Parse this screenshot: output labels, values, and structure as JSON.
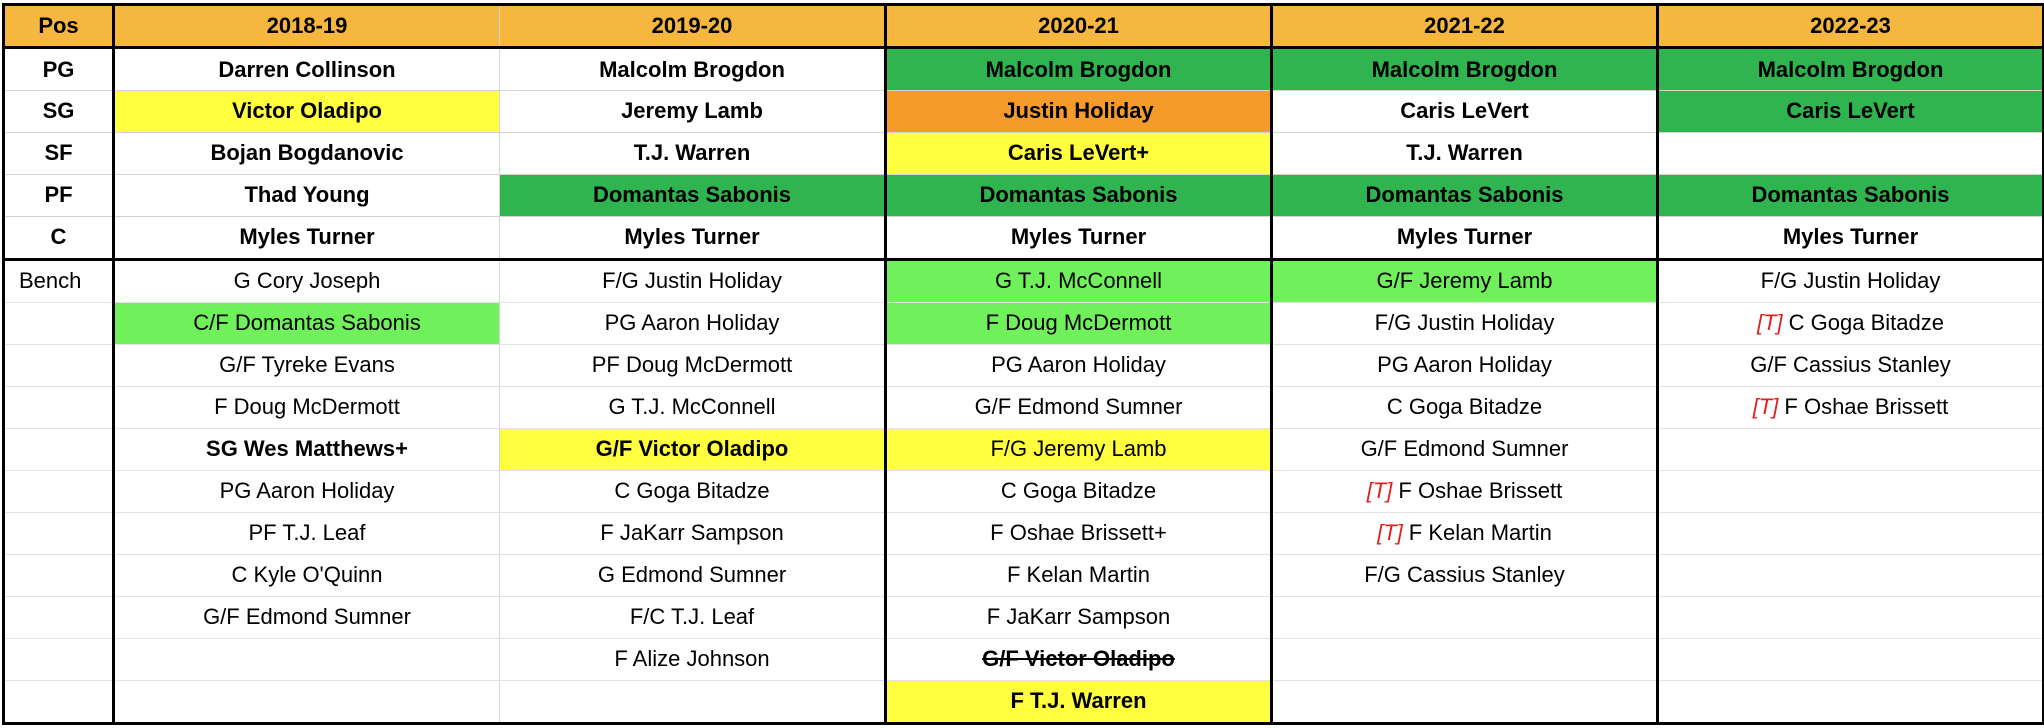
{
  "header": {
    "pos": "Pos",
    "seasons": [
      "2018-19",
      "2019-20",
      "2020-21",
      "2021-22",
      "2022-23"
    ]
  },
  "bench_label": "Bench",
  "starters": [
    {
      "pos": "PG",
      "cells": [
        {
          "text": "Darren Collinson"
        },
        {
          "text": "Malcolm Brogdon"
        },
        {
          "text": "Malcolm Brogdon",
          "color": "green"
        },
        {
          "text": "Malcolm Brogdon",
          "color": "green"
        },
        {
          "text": "Malcolm Brogdon",
          "color": "green"
        }
      ]
    },
    {
      "pos": "SG",
      "cells": [
        {
          "text": "Victor Oladipo",
          "color": "yellow"
        },
        {
          "text": "Jeremy Lamb"
        },
        {
          "text": "Justin Holiday",
          "color": "orange"
        },
        {
          "text": "Caris LeVert"
        },
        {
          "text": "Caris LeVert",
          "color": "green"
        }
      ]
    },
    {
      "pos": "SF",
      "cells": [
        {
          "text": "Bojan Bogdanovic"
        },
        {
          "text": "T.J. Warren"
        },
        {
          "text": "Caris LeVert+",
          "color": "yellow"
        },
        {
          "text": "T.J. Warren"
        },
        {
          "text": ""
        }
      ]
    },
    {
      "pos": "PF",
      "cells": [
        {
          "text": "Thad Young"
        },
        {
          "text": "Domantas Sabonis",
          "color": "green"
        },
        {
          "text": "Domantas Sabonis",
          "color": "green"
        },
        {
          "text": "Domantas Sabonis",
          "color": "green"
        },
        {
          "text": "Domantas Sabonis",
          "color": "green"
        }
      ]
    },
    {
      "pos": "C",
      "cells": [
        {
          "text": "Myles Turner"
        },
        {
          "text": "Myles Turner"
        },
        {
          "text": "Myles Turner"
        },
        {
          "text": "Myles Turner"
        },
        {
          "text": "Myles Turner"
        }
      ]
    }
  ],
  "bench": [
    [
      {
        "text": "G Cory Joseph"
      },
      {
        "text": "F/G Justin Holiday"
      },
      {
        "text": "G T.J. McConnell",
        "color": "lightgreen"
      },
      {
        "text": "G/F Jeremy Lamb",
        "color": "lightgreen"
      },
      {
        "text": "F/G Justin Holiday"
      }
    ],
    [
      {
        "text": "C/F Domantas Sabonis",
        "color": "lightgreen"
      },
      {
        "text": "PG Aaron Holiday"
      },
      {
        "text": "F Doug McDermott",
        "color": "lightgreen"
      },
      {
        "text": "F/G Justin Holiday"
      },
      {
        "text": "C Goga Bitadze",
        "tag": "[T]"
      }
    ],
    [
      {
        "text": "G/F Tyreke Evans"
      },
      {
        "text": "PF Doug McDermott"
      },
      {
        "text": "PG Aaron Holiday"
      },
      {
        "text": "PG Aaron Holiday"
      },
      {
        "text": "G/F Cassius Stanley"
      }
    ],
    [
      {
        "text": "F Doug McDermott"
      },
      {
        "text": "G T.J. McConnell"
      },
      {
        "text": "G/F Edmond Sumner"
      },
      {
        "text": "C Goga Bitadze"
      },
      {
        "text": "F Oshae Brissett",
        "tag": "[T]"
      }
    ],
    [
      {
        "text": "SG Wes Matthews+",
        "bold": true
      },
      {
        "text": "G/F Victor Oladipo",
        "color": "yellow",
        "bold": true
      },
      {
        "text": "F/G Jeremy Lamb",
        "color": "yellow"
      },
      {
        "text": "G/F Edmond Sumner"
      },
      {
        "text": ""
      }
    ],
    [
      {
        "text": "PG Aaron Holiday"
      },
      {
        "text": "C Goga Bitadze"
      },
      {
        "text": "C Goga Bitadze"
      },
      {
        "text": "F Oshae Brissett",
        "tag": "[T]"
      },
      {
        "text": ""
      }
    ],
    [
      {
        "text": "PF T.J. Leaf"
      },
      {
        "text": "F JaKarr Sampson"
      },
      {
        "text": "F Oshae Brissett+"
      },
      {
        "text": "F Kelan Martin",
        "tag": "[T]"
      },
      {
        "text": ""
      }
    ],
    [
      {
        "text": "C Kyle O'Quinn"
      },
      {
        "text": "G Edmond Sumner"
      },
      {
        "text": "F Kelan Martin"
      },
      {
        "text": "F/G Cassius Stanley"
      },
      {
        "text": ""
      }
    ],
    [
      {
        "text": "G/F Edmond Sumner"
      },
      {
        "text": "F/C T.J. Leaf"
      },
      {
        "text": "F JaKarr Sampson"
      },
      {
        "text": ""
      },
      {
        "text": ""
      }
    ],
    [
      {
        "text": ""
      },
      {
        "text": "F Alize Johnson"
      },
      {
        "text": "G/F Victor Oladipo",
        "bold": true,
        "strike": true
      },
      {
        "text": ""
      },
      {
        "text": ""
      }
    ],
    [
      {
        "text": ""
      },
      {
        "text": ""
      },
      {
        "text": "F T.J. Warren",
        "color": "yellow",
        "bold": true
      },
      {
        "text": ""
      },
      {
        "text": ""
      }
    ]
  ],
  "colors": {
    "header": "#f5b73f",
    "green": "#2fb44f",
    "lightgreen": "#70f05a",
    "yellow": "#ffff3f",
    "orange": "#f59b2c",
    "tag": "#e0201c"
  }
}
